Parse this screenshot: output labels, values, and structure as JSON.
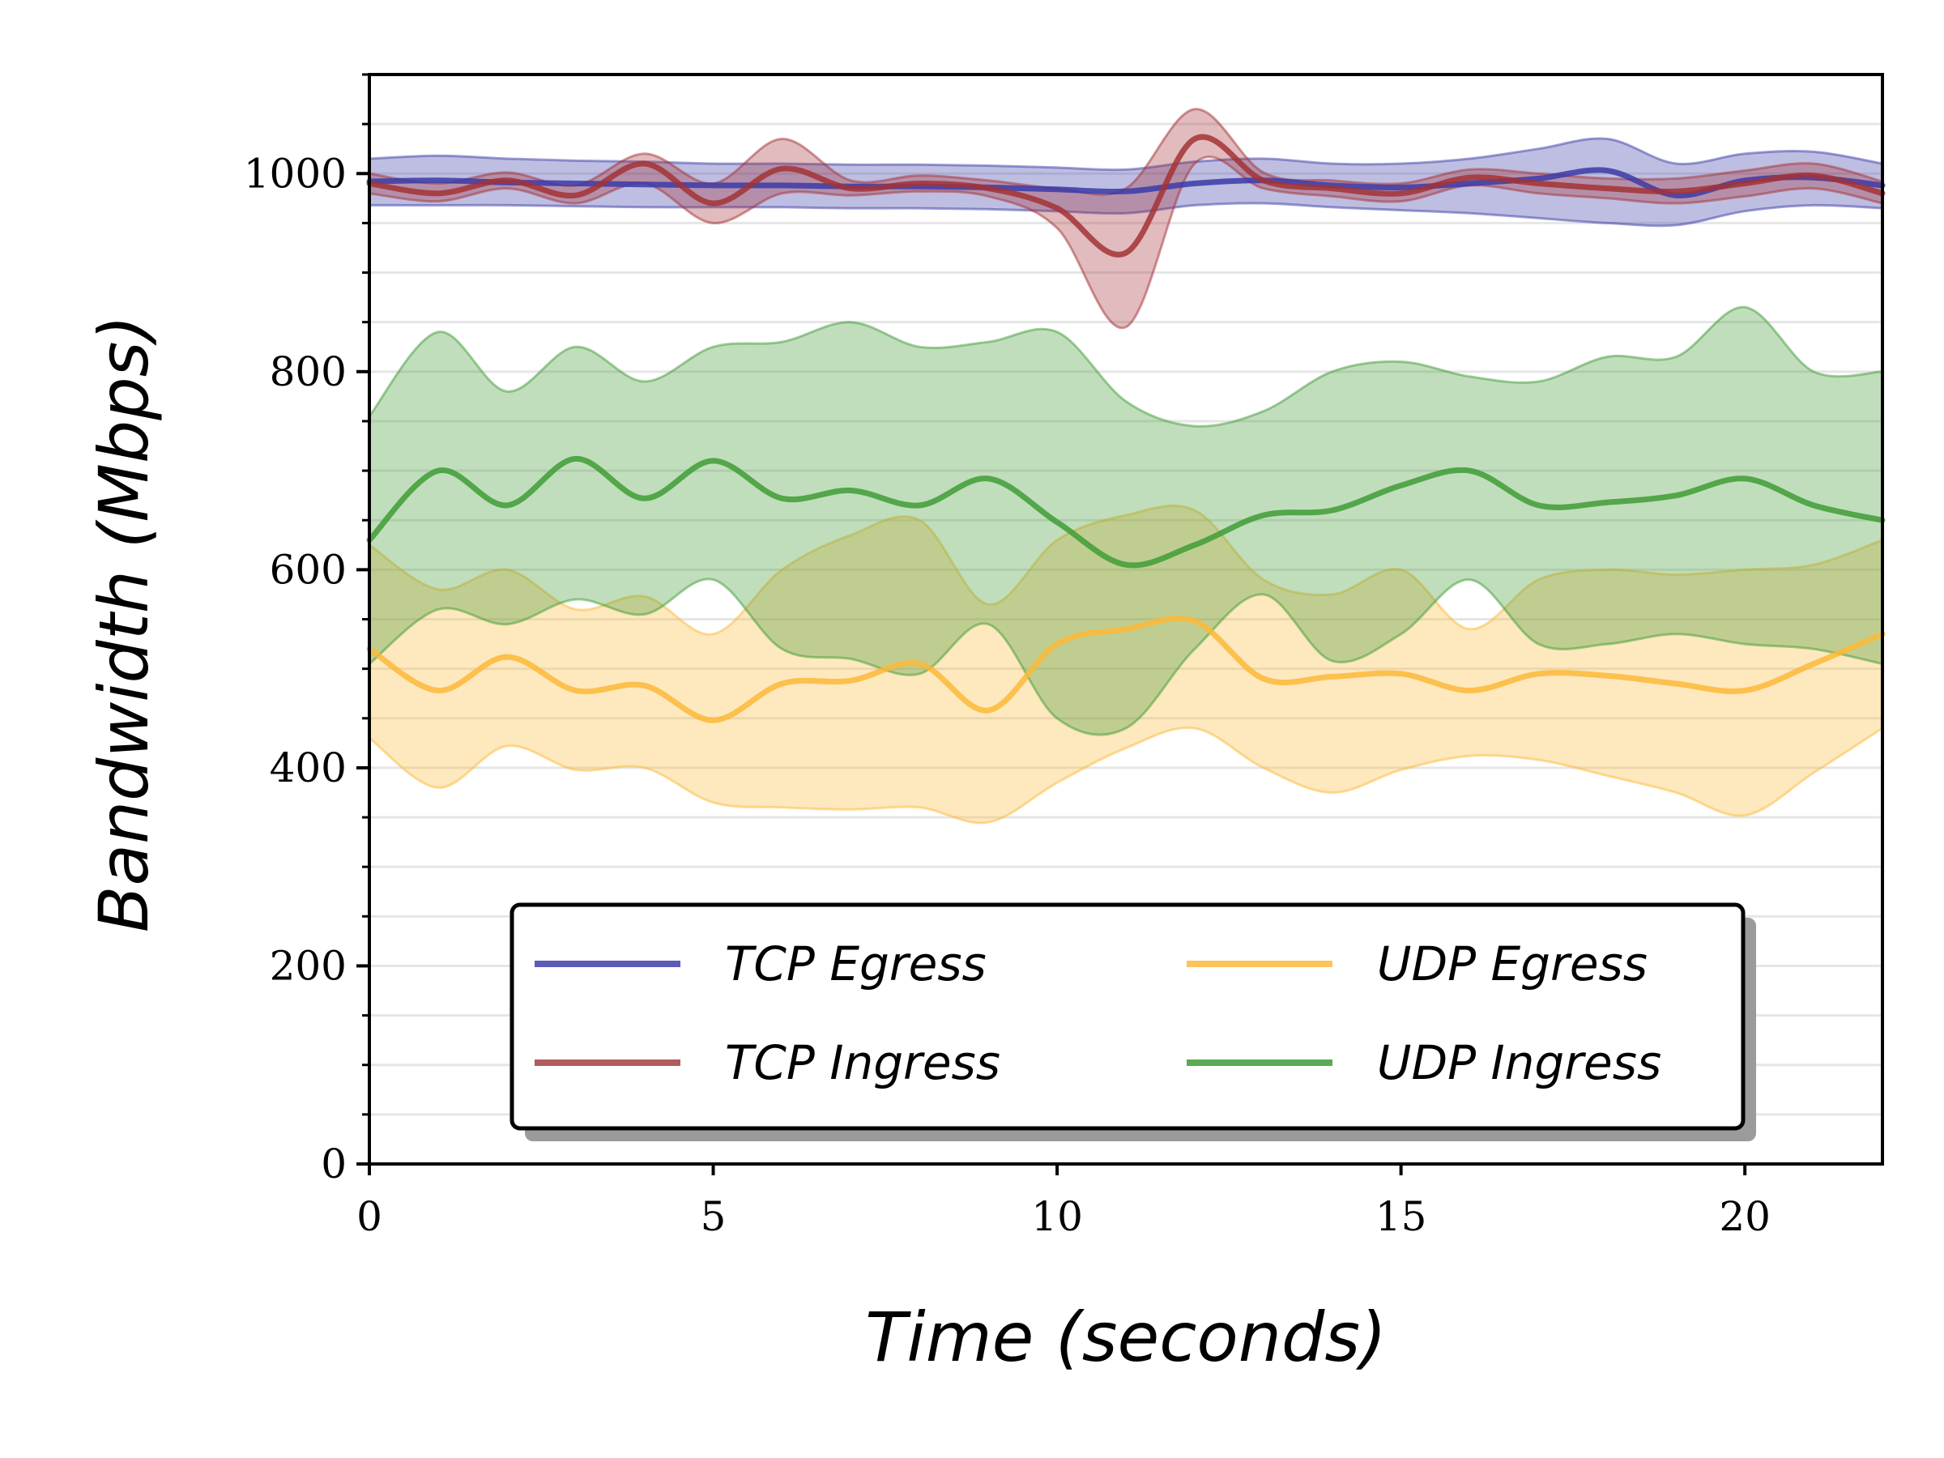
{
  "chart_data": {
    "type": "line",
    "xlabel": "Time (seconds)",
    "ylabel": "Bandwidth (Mbps)",
    "xlim": [
      0,
      22
    ],
    "ylim": [
      0,
      1100
    ],
    "x_ticks": [
      0,
      5,
      10,
      15,
      20
    ],
    "y_ticks": [
      0,
      200,
      400,
      600,
      800,
      1000
    ],
    "grid": "horizontal minor gridlines every 50",
    "legend": {
      "placement": "lower-center",
      "columns": 2
    },
    "series": [
      {
        "name": "TCP Egress",
        "color": "#3b3ba8",
        "band": true,
        "x": [
          0,
          1,
          2,
          3,
          4,
          5,
          6,
          7,
          8,
          9,
          10,
          11,
          12,
          13,
          14,
          15,
          16,
          17,
          18,
          19,
          20,
          21,
          22
        ],
        "mean": [
          992,
          993,
          991,
          990,
          989,
          988,
          988,
          987,
          987,
          986,
          984,
          982,
          990,
          993,
          988,
          986,
          990,
          995,
          1003,
          978,
          993,
          996,
          988
        ],
        "lower": [
          968,
          968,
          968,
          967,
          966,
          966,
          966,
          965,
          965,
          964,
          962,
          960,
          968,
          970,
          966,
          963,
          960,
          955,
          950,
          948,
          962,
          968,
          965
        ],
        "upper": [
          1015,
          1018,
          1015,
          1013,
          1012,
          1010,
          1010,
          1009,
          1009,
          1008,
          1006,
          1004,
          1012,
          1015,
          1010,
          1010,
          1015,
          1025,
          1035,
          1010,
          1020,
          1022,
          1010
        ]
      },
      {
        "name": "TCP Ingress",
        "color": "#a33236",
        "band": true,
        "x": [
          0,
          1,
          2,
          3,
          4,
          5,
          6,
          7,
          8,
          9,
          10,
          11,
          12,
          13,
          14,
          15,
          16,
          17,
          18,
          19,
          20,
          21,
          22
        ],
        "mean": [
          990,
          980,
          993,
          978,
          1010,
          970,
          1005,
          985,
          990,
          985,
          965,
          920,
          1035,
          993,
          985,
          980,
          996,
          990,
          985,
          982,
          990,
          998,
          980
        ],
        "lower": [
          980,
          972,
          985,
          970,
          990,
          950,
          980,
          978,
          982,
          977,
          945,
          845,
          1010,
          985,
          977,
          972,
          988,
          980,
          975,
          970,
          977,
          985,
          970
        ],
        "upper": [
          1000,
          990,
          1001,
          988,
          1020,
          990,
          1035,
          993,
          998,
          993,
          985,
          985,
          1065,
          1001,
          993,
          990,
          1004,
          1000,
          995,
          995,
          1003,
          1010,
          992
        ]
      },
      {
        "name": "UDP Egress",
        "color": "#fbb93a",
        "band": true,
        "x": [
          0,
          1,
          2,
          3,
          4,
          5,
          6,
          7,
          8,
          9,
          10,
          11,
          12,
          13,
          14,
          15,
          16,
          17,
          18,
          19,
          20,
          21,
          22
        ],
        "mean": [
          520,
          478,
          512,
          478,
          483,
          448,
          485,
          488,
          505,
          458,
          525,
          540,
          548,
          490,
          492,
          495,
          478,
          495,
          493,
          485,
          478,
          505,
          535
        ],
        "lower": [
          430,
          380,
          422,
          398,
          400,
          365,
          360,
          358,
          360,
          345,
          385,
          420,
          440,
          400,
          375,
          398,
          412,
          408,
          392,
          375,
          352,
          395,
          440
        ],
        "upper": [
          625,
          580,
          600,
          560,
          573,
          535,
          600,
          635,
          650,
          565,
          630,
          655,
          660,
          590,
          575,
          600,
          540,
          590,
          600,
          595,
          600,
          605,
          630
        ]
      },
      {
        "name": "UDP Ingress",
        "color": "#3f9c35",
        "band": true,
        "x": [
          0,
          1,
          2,
          3,
          4,
          5,
          6,
          7,
          8,
          9,
          10,
          11,
          12,
          13,
          14,
          15,
          16,
          17,
          18,
          19,
          20,
          21,
          22
        ],
        "mean": [
          630,
          700,
          665,
          712,
          672,
          710,
          672,
          680,
          665,
          692,
          648,
          605,
          625,
          655,
          660,
          685,
          700,
          665,
          668,
          675,
          692,
          665,
          650
        ],
        "lower": [
          505,
          560,
          545,
          570,
          555,
          590,
          520,
          510,
          495,
          545,
          450,
          440,
          520,
          575,
          508,
          535,
          590,
          525,
          525,
          535,
          525,
          520,
          505
        ],
        "upper": [
          755,
          840,
          780,
          825,
          790,
          825,
          830,
          850,
          825,
          830,
          840,
          770,
          745,
          760,
          800,
          810,
          795,
          790,
          815,
          815,
          865,
          800,
          800
        ]
      }
    ]
  },
  "legend_items": [
    {
      "label": "TCP Egress",
      "color": "#5c5cb8"
    },
    {
      "label": "UDP Egress",
      "color": "#fcc35a"
    },
    {
      "label": "TCP Ingress",
      "color": "#b05c5e"
    },
    {
      "label": "UDP Ingress",
      "color": "#5aab53"
    }
  ]
}
